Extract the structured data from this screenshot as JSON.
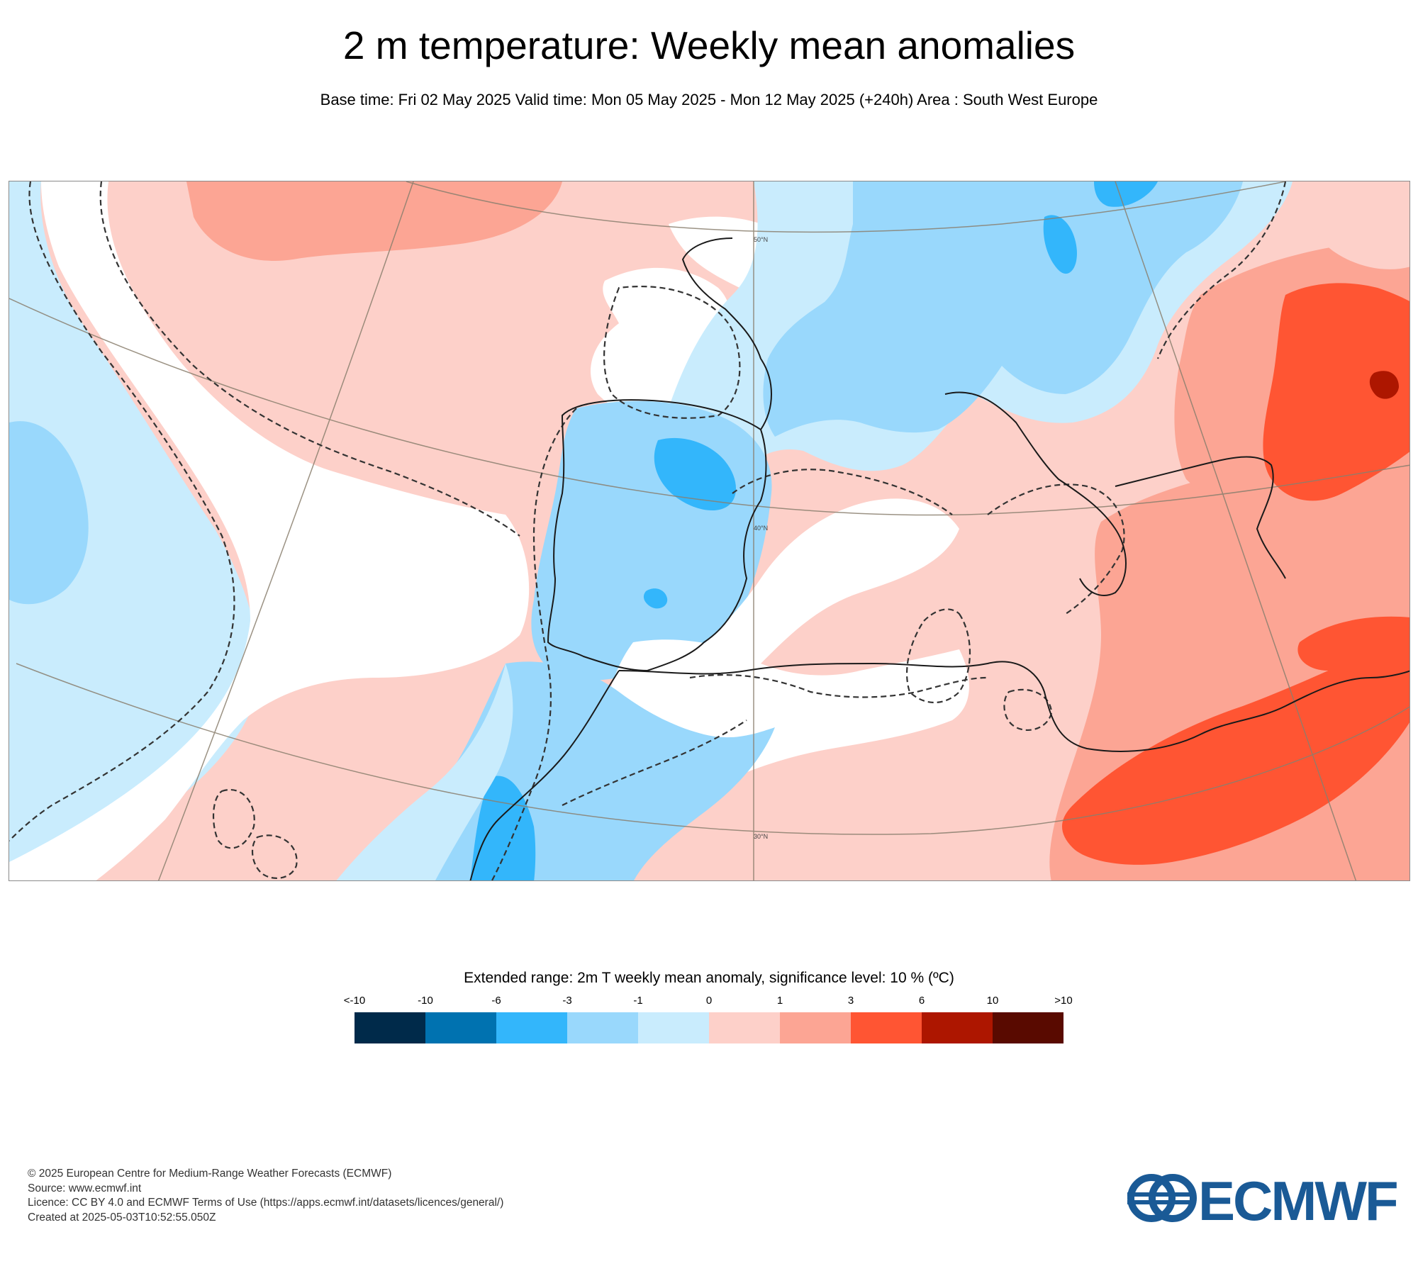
{
  "header": {
    "title": "2 m temperature: Weekly mean anomalies",
    "subtitle": "Base time: Fri 02 May 2025 Valid time: Mon 05 May 2025 - Mon 12 May 2025 (+240h) Area : South West Europe"
  },
  "map": {
    "area": "South West Europe",
    "lat_labels": [
      "50°N",
      "40°N",
      "30°N"
    ],
    "colors": {
      "strong_warm": "#ff5533",
      "warm": "#fca594",
      "mild_warm": "#fdd0c9",
      "neutral": "#ffffff",
      "mild_cool": "#c9ecfd",
      "cool": "#99d8fc",
      "strong_cool": "#33b6fb",
      "very_warm": "#ad1600"
    }
  },
  "legend": {
    "title": "Extended range: 2m T weekly mean anomaly, significance level: 10 % (ºC)",
    "ticks": [
      "<-10",
      "-10",
      "-6",
      "-3",
      "-1",
      "0",
      "1",
      "3",
      "6",
      "10",
      ">10"
    ],
    "colors": [
      "#002a4a",
      "#0072b0",
      "#33b6fb",
      "#99d8fc",
      "#c9ecfd",
      "#fdd0c9",
      "#fca594",
      "#ff5533",
      "#ad1600",
      "#590a00"
    ]
  },
  "footer": {
    "copyright": "© 2025 European Centre for Medium-Range Weather Forecasts (ECMWF)",
    "source": "Source: www.ecmwf.int",
    "licence": "Licence: CC BY 4.0 and ECMWF Terms of Use (https://apps.ecmwf.int/datasets/licences/general/)",
    "created": "Created at 2025-05-03T10:52:55.050Z"
  },
  "logo": {
    "text": "ECMWF",
    "color": "#1a5a96"
  }
}
